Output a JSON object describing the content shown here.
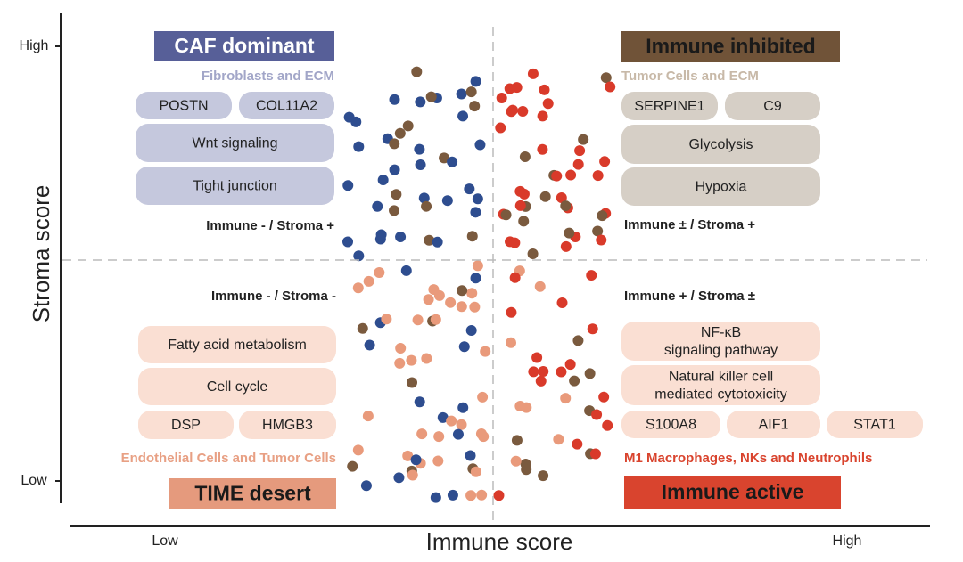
{
  "axes": {
    "y_label": "Stroma score",
    "y_high": "High",
    "y_low": "Low",
    "x_label": "Immune score",
    "x_low": "Low",
    "x_high": "High"
  },
  "quadrants": [
    {
      "title": "CAF dominant",
      "subtitle": "Fibroblasts and ECM",
      "label": "Immune - / Stroma +",
      "tags": [
        [
          "POSTN",
          "COL11A2"
        ],
        [
          "Wnt signaling"
        ],
        [
          "Tight junction"
        ]
      ]
    },
    {
      "title": "Immune inhibited",
      "subtitle": "Tumor Cells and ECM",
      "label": "Immune ± / Stroma +",
      "tags": [
        [
          "SERPINE1",
          "C9"
        ],
        [
          "Glycolysis"
        ],
        [
          "Hypoxia"
        ]
      ]
    },
    {
      "title": "TIME desert",
      "subtitle": "Endothelial Cells and Tumor Cells",
      "label": "Immune - / Stroma -",
      "tags": [
        [
          "Fatty acid metabolism"
        ],
        [
          "Cell cycle"
        ],
        [
          "DSP",
          "HMGB3"
        ]
      ]
    },
    {
      "title": "Immune active",
      "subtitle": "M1 Macrophages, NKs and Neutrophils",
      "label": "Immune + / Stroma ±",
      "tags": [
        [
          [
            "NF-κB",
            "signaling pathway"
          ]
        ],
        [
          [
            "Natural killer cell",
            "mediated cytotoxicity"
          ]
        ],
        [
          "S100A8",
          "AIF1",
          "STAT1"
        ]
      ]
    }
  ]
}
